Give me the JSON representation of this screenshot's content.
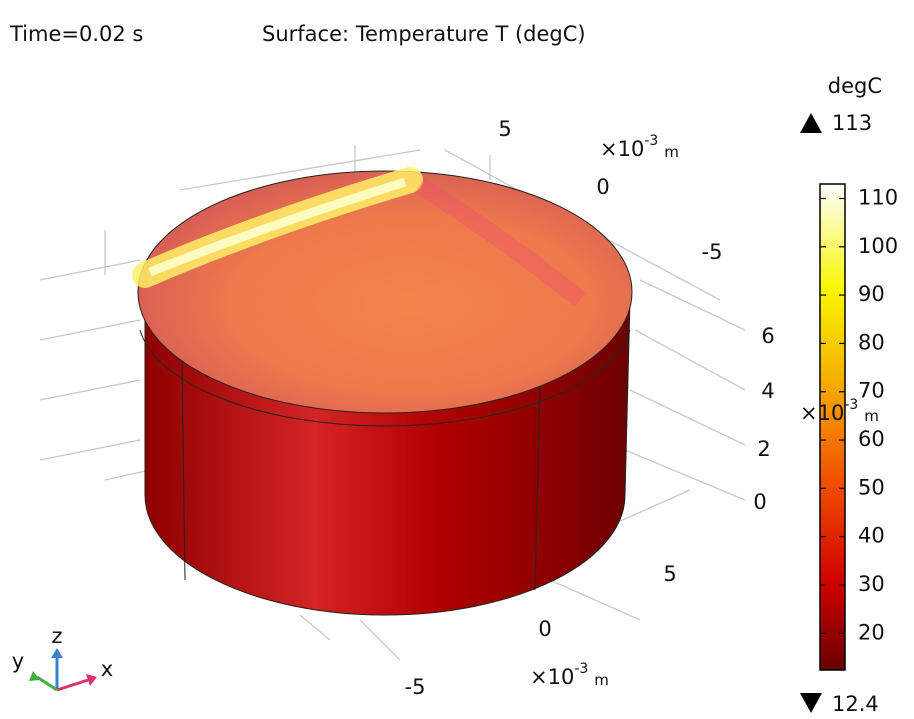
{
  "header": {
    "time": "Time=0.02 s",
    "title": "Surface: Temperature T (degC)"
  },
  "colorbar": {
    "unit": "degC",
    "max": 113,
    "min": 12.4,
    "range": [
      12.4,
      113
    ],
    "ticks": [
      20,
      30,
      40,
      50,
      60,
      70,
      80,
      90,
      100,
      110
    ]
  },
  "axes": {
    "scale_base": "×10",
    "scale_exponent": "-3",
    "scale_unit": "m",
    "y_ticks": [
      "5",
      "0",
      "-5"
    ],
    "z_ticks": [
      "6",
      "4",
      "2",
      "0"
    ],
    "x_ticks": [
      "5",
      "0",
      "-5"
    ],
    "triad": {
      "x": "x",
      "y": "y",
      "z": "z"
    }
  }
}
